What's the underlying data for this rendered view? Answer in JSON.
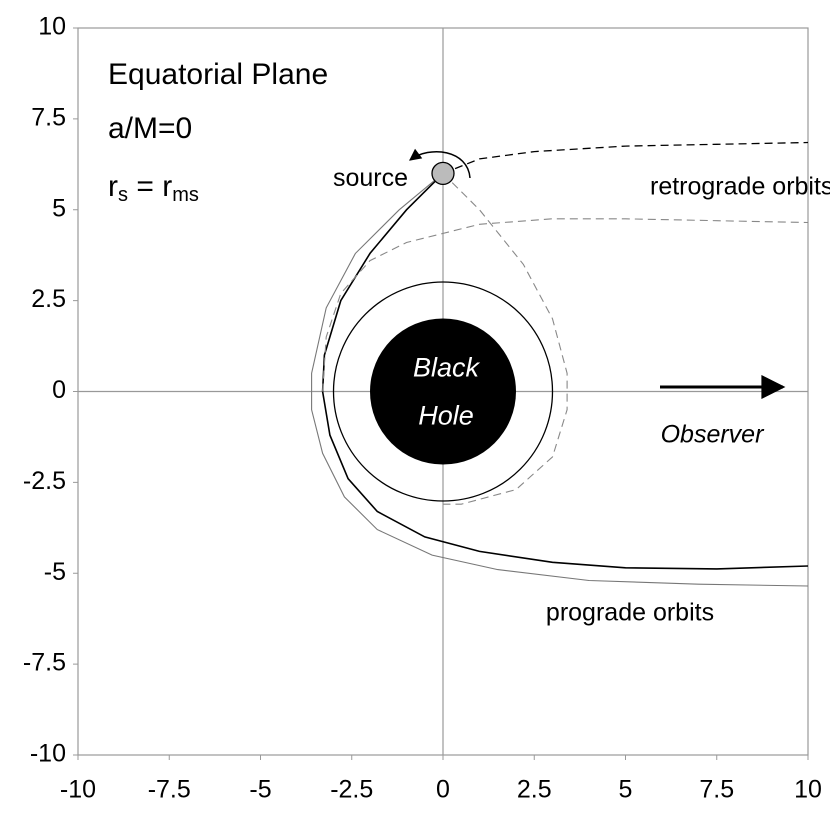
{
  "chart_data": {
    "type": "line",
    "title_lines": [
      "Equatorial Plane",
      "a/M=0"
    ],
    "radius_label": [
      "r",
      "s",
      " = r",
      "ms"
    ],
    "xlim": [
      -10,
      10
    ],
    "ylim": [
      -10,
      10
    ],
    "xticks": [
      -10,
      -7.5,
      -5,
      -2.5,
      0,
      2.5,
      5,
      7.5,
      10
    ],
    "yticks": [
      -10,
      -7.5,
      -5,
      -2.5,
      0,
      2.5,
      5,
      7.5,
      10
    ],
    "zero_lines": true,
    "black_hole": {
      "radius": 2,
      "label_lines": [
        "Black",
        "Hole"
      ]
    },
    "photon_orbit_radius": 3,
    "source": {
      "x": 0,
      "y": 6,
      "label": "source"
    },
    "annotations": {
      "retrograde": "retrograde orbits",
      "prograde": "prograde orbits",
      "observer": "Observer"
    },
    "series": [
      {
        "color": "#000000",
        "dash": false,
        "width": 1.6,
        "x": [
          0,
          -1,
          -2,
          -2.8,
          -3.25,
          -3.3,
          -3.1,
          -2.6,
          -1.8,
          -0.5,
          1,
          3,
          5,
          7.5,
          10
        ],
        "y": [
          6,
          5,
          3.8,
          2.5,
          1,
          0,
          -1.2,
          -2.4,
          -3.3,
          -4,
          -4.4,
          -4.7,
          -4.85,
          -4.88,
          -4.8
        ]
      },
      {
        "color": "#777777",
        "dash": false,
        "width": 1.1,
        "x": [
          0,
          -1.2,
          -2.4,
          -3.2,
          -3.6,
          -3.6,
          -3.3,
          -2.7,
          -1.8,
          -0.3,
          1.5,
          4,
          7,
          10
        ],
        "y": [
          6,
          5,
          3.8,
          2.3,
          0.5,
          -0.5,
          -1.7,
          -2.9,
          -3.8,
          -4.5,
          -4.9,
          -5.2,
          -5.3,
          -5.35
        ]
      },
      {
        "color": "#000000",
        "dash": true,
        "width": 1.3,
        "x": [
          0,
          1,
          2.5,
          5,
          7.5,
          10
        ],
        "y": [
          6,
          6.4,
          6.6,
          6.75,
          6.8,
          6.85
        ]
      },
      {
        "color": "#888888",
        "dash": true,
        "width": 1.1,
        "x": [
          0,
          1,
          2.2,
          3,
          3.4,
          3.4,
          3,
          2,
          0.5,
          0
        ],
        "y": [
          6,
          5,
          3.5,
          2,
          0.5,
          -0.5,
          -1.8,
          -2.7,
          -3.1,
          -3.1
        ]
      },
      {
        "color": "#888888",
        "dash": true,
        "width": 1.1,
        "x": [
          -3.3,
          -3.2,
          -2.8,
          -2,
          -1,
          1,
          3,
          5,
          7.5,
          10
        ],
        "y": [
          0,
          1.5,
          2.7,
          3.6,
          4.1,
          4.6,
          4.75,
          4.75,
          4.7,
          4.65
        ]
      }
    ]
  }
}
